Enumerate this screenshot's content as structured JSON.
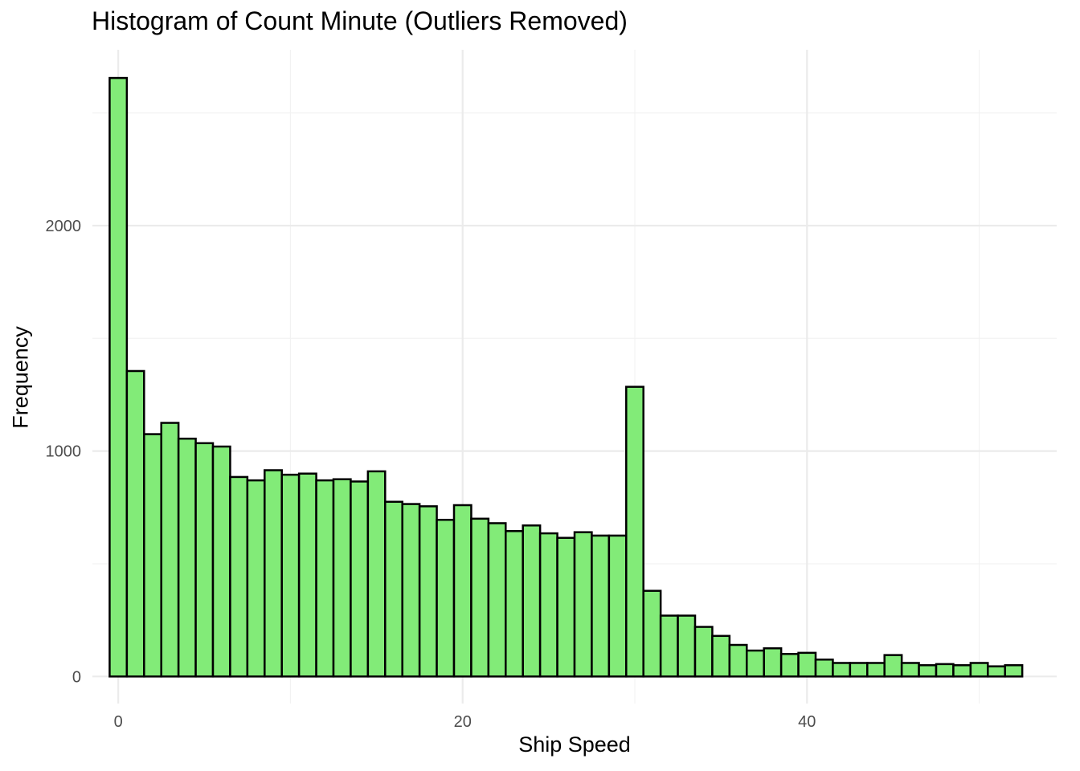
{
  "chart_data": {
    "type": "bar",
    "title": "Histogram of Count Minute (Outliers Removed)",
    "xlabel": "Ship Speed",
    "ylabel": "Frequency",
    "bin_width": 1,
    "x": [
      0,
      1,
      2,
      3,
      4,
      5,
      6,
      7,
      8,
      9,
      10,
      11,
      12,
      13,
      14,
      15,
      16,
      17,
      18,
      19,
      20,
      21,
      22,
      23,
      24,
      25,
      26,
      27,
      28,
      29,
      30,
      31,
      32,
      33,
      34,
      35,
      36,
      37,
      38,
      39,
      40,
      41,
      42,
      43,
      44,
      45,
      46,
      47,
      48,
      49,
      50,
      51,
      52
    ],
    "values": [
      2655,
      1355,
      1075,
      1125,
      1055,
      1035,
      1020,
      885,
      870,
      915,
      895,
      900,
      870,
      875,
      865,
      910,
      775,
      765,
      755,
      695,
      760,
      700,
      680,
      645,
      670,
      635,
      615,
      640,
      625,
      625,
      1285,
      380,
      270,
      270,
      220,
      180,
      140,
      115,
      125,
      100,
      105,
      75,
      60,
      60,
      60,
      95,
      60,
      50,
      55,
      50,
      60,
      45,
      50
    ],
    "xlim": [
      -1.5,
      54.5
    ],
    "ylim": [
      -120,
      2780
    ],
    "x_ticks": [
      0,
      20,
      40
    ],
    "y_ticks": [
      0,
      1000,
      2000
    ],
    "x_tick_labels": [
      "0",
      "20",
      "40"
    ],
    "y_tick_labels": [
      "0",
      "1000",
      "2000"
    ],
    "grid": true,
    "legend": "none",
    "colors": {
      "bar_fill": "#82eb78",
      "bar_stroke": "#000000",
      "grid_major": "#ebebeb",
      "grid_minor": "#f2f2f2",
      "tick_text": "#4d4d4d"
    }
  }
}
